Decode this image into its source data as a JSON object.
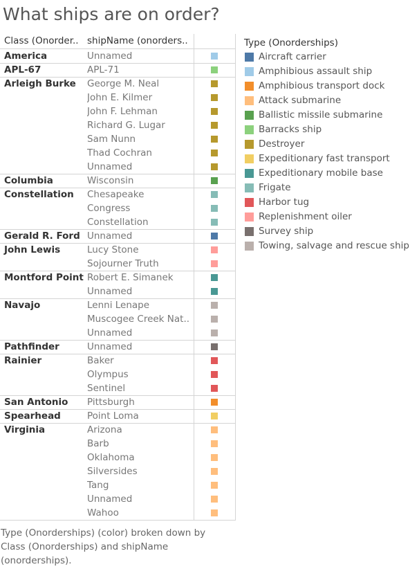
{
  "title": "What ships are on order?",
  "caption": "Type (Onorderships) (color) broken down by Class (Onorderships) and shipName (onorderships).",
  "chart_data": {
    "type": "table",
    "column_headers": {
      "class": "Class (Onorder..",
      "ship": "shipName (onorders.."
    },
    "legend": {
      "title": "Type (Onorderships)",
      "items": [
        {
          "label": "Aircraft carrier",
          "color": "#4e79a7"
        },
        {
          "label": "Amphibious assault ship",
          "color": "#a0cbe8"
        },
        {
          "label": "Amphibious transport dock",
          "color": "#f28e2b"
        },
        {
          "label": "Attack submarine",
          "color": "#ffbe7d"
        },
        {
          "label": "Ballistic missile submarine",
          "color": "#59a14f"
        },
        {
          "label": "Barracks ship",
          "color": "#8cd17d"
        },
        {
          "label": "Destroyer",
          "color": "#b6992d"
        },
        {
          "label": "Expeditionary fast transport",
          "color": "#f1ce63"
        },
        {
          "label": "Expeditionary mobile base",
          "color": "#499894"
        },
        {
          "label": "Frigate",
          "color": "#86bcb6"
        },
        {
          "label": "Harbor tug",
          "color": "#e15759"
        },
        {
          "label": "Replenishment oiler",
          "color": "#ff9d9a"
        },
        {
          "label": "Survey ship",
          "color": "#79706e"
        },
        {
          "label": "Towing, salvage and rescue ship",
          "color": "#bab0ac"
        }
      ]
    },
    "groups": [
      {
        "class": "America",
        "type": "Amphibious assault ship",
        "ships": [
          "Unnamed"
        ]
      },
      {
        "class": "APL-67",
        "type": "Barracks ship",
        "ships": [
          "APL-71"
        ]
      },
      {
        "class": "Arleigh Burke",
        "type": "Destroyer",
        "ships": [
          "George M. Neal",
          "John E. Kilmer",
          "John F. Lehman",
          "Richard G. Lugar",
          "Sam Nunn",
          "Thad Cochran",
          "Unnamed"
        ]
      },
      {
        "class": "Columbia",
        "type": "Ballistic missile submarine",
        "ships": [
          "Wisconsin"
        ]
      },
      {
        "class": "Constellation",
        "type": "Frigate",
        "ships": [
          "Chesapeake",
          "Congress",
          "Constellation"
        ]
      },
      {
        "class": "Gerald R. Ford",
        "type": "Aircraft carrier",
        "ships": [
          "Unnamed"
        ]
      },
      {
        "class": "John Lewis",
        "type": "Replenishment oiler",
        "ships": [
          "Lucy Stone",
          "Sojourner Truth"
        ]
      },
      {
        "class": "Montford Point",
        "type": "Expeditionary mobile base",
        "ships": [
          "Robert E. Simanek",
          "Unnamed"
        ]
      },
      {
        "class": "Navajo",
        "type": "Towing, salvage and rescue ship",
        "ships": [
          "Lenni Lenape",
          "Muscogee Creek Nat..",
          "Unnamed"
        ]
      },
      {
        "class": "Pathfinder",
        "type": "Survey ship",
        "ships": [
          "Unnamed"
        ]
      },
      {
        "class": "Rainier",
        "type": "Harbor tug",
        "ships": [
          "Baker",
          "Olympus",
          "Sentinel"
        ]
      },
      {
        "class": "San Antonio",
        "type": "Amphibious transport dock",
        "ships": [
          "Pittsburgh"
        ]
      },
      {
        "class": "Spearhead",
        "type": "Expeditionary fast transport",
        "ships": [
          "Point Loma"
        ]
      },
      {
        "class": "Virginia",
        "type": "Attack submarine",
        "ships": [
          "Arizona",
          "Barb",
          "Oklahoma",
          "Silversides",
          "Tang",
          "Unnamed",
          "Wahoo"
        ]
      }
    ]
  }
}
